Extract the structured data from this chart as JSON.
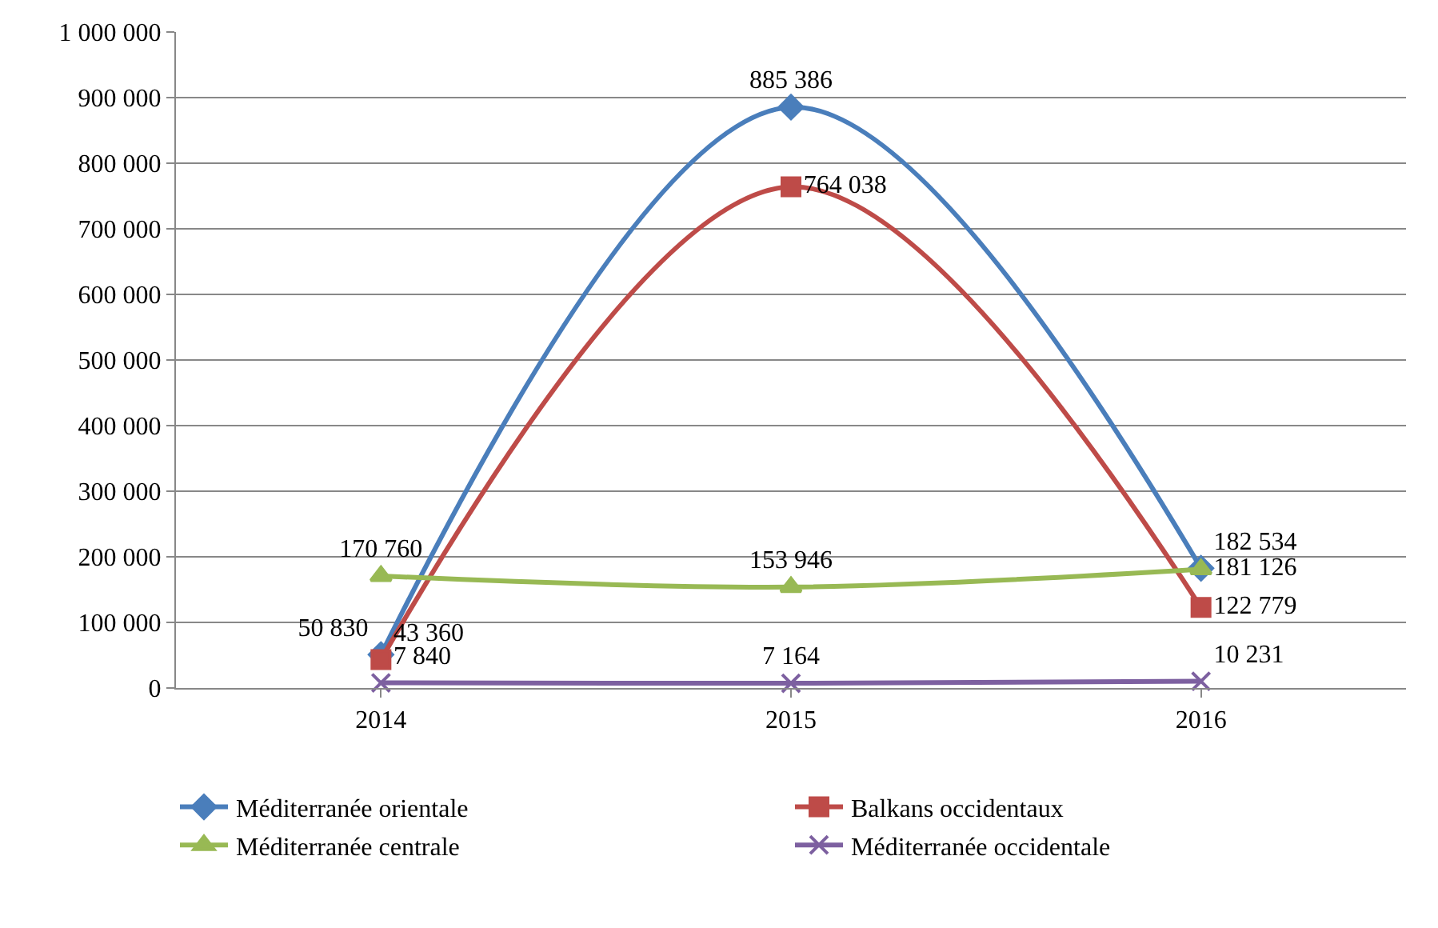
{
  "chart_data": {
    "type": "line",
    "categories": [
      "2014",
      "2015",
      "2016"
    ],
    "series": [
      {
        "name": "Méditerranée orientale",
        "color": "#4a7ebb",
        "marker": "diamond",
        "values": [
          50830,
          885386,
          182534
        ],
        "value_labels": [
          "50 830",
          "885 386",
          "182 534"
        ]
      },
      {
        "name": "Balkans occidentaux",
        "color": "#be4b48",
        "marker": "square",
        "values": [
          43360,
          764038,
          122779
        ],
        "value_labels": [
          "43 360",
          "764 038",
          "122 779"
        ]
      },
      {
        "name": "Méditerranée centrale",
        "color": "#98b954",
        "marker": "triangle",
        "values": [
          170760,
          153946,
          181126
        ],
        "value_labels": [
          "170 760",
          "153 946",
          "181 126"
        ]
      },
      {
        "name": "Méditerranée occidentale",
        "color": "#7d60a0",
        "marker": "cross",
        "values": [
          7840,
          7164,
          10231
        ],
        "value_labels": [
          "7 840",
          "7 164",
          "10 231"
        ]
      }
    ],
    "ylim": [
      0,
      1000000
    ],
    "yticks": [
      0,
      {
        "value": 100000,
        "label": "100 000"
      },
      {
        "value": 200000,
        "label": "200 000"
      },
      {
        "value": 300000,
        "label": "300 000"
      },
      {
        "value": 400000,
        "label": "400 000"
      },
      {
        "value": 500000,
        "label": "500 000"
      },
      {
        "value": 600000,
        "label": "600 000"
      },
      {
        "value": 700000,
        "label": "700 000"
      },
      {
        "value": 800000,
        "label": "800 000"
      },
      {
        "value": 900000,
        "label": "900 000"
      },
      {
        "value": 1000000,
        "label": "1 000 000"
      }
    ],
    "grid": "y",
    "legend": "bottom",
    "line_style": "solid"
  }
}
